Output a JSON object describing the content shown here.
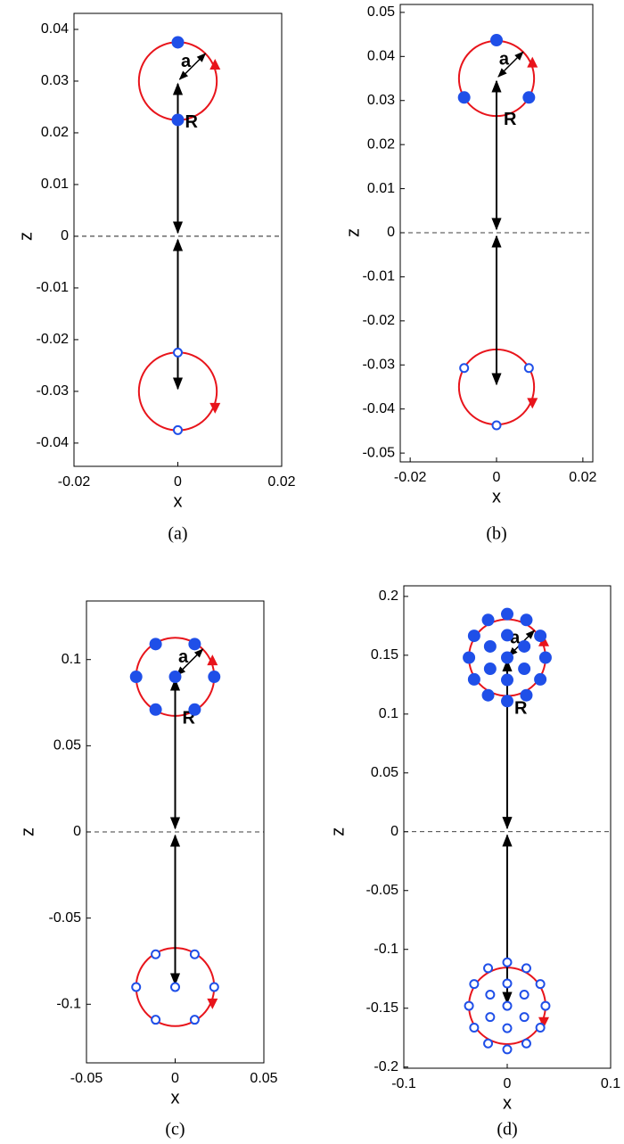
{
  "chart_data": [
    {
      "type": "scatter",
      "caption": "(a)",
      "xlabel": "x",
      "ylabel": "z",
      "xlim": [
        -0.02,
        0.02
      ],
      "xticks": [
        -0.02,
        0,
        0.02
      ],
      "ylim": [
        -0.0445,
        0.0431
      ],
      "yticks": [
        -0.04,
        -0.03,
        -0.02,
        -0.01,
        0,
        0.01,
        0.02,
        0.03,
        0.04
      ],
      "annotations": [
        "R",
        "a"
      ],
      "ring_color": "#e8141b",
      "rings": [
        {
          "x": 0,
          "y": 0.03,
          "r": 0.0075
        },
        {
          "x": 0,
          "y": -0.03,
          "r": 0.0075
        }
      ],
      "series": [
        {
          "marker": "filled",
          "color": "#1f4fe8",
          "x": [
            0,
            0
          ],
          "y": [
            0.0375,
            0.0225
          ]
        },
        {
          "marker": "open",
          "color": "#1f4fe8",
          "x": [
            0,
            0
          ],
          "y": [
            -0.0225,
            -0.0375
          ]
        }
      ]
    },
    {
      "type": "scatter",
      "caption": "(b)",
      "xlabel": "x",
      "ylabel": "z",
      "xlim": [
        -0.0223,
        0.0223
      ],
      "xticks": [
        -0.02,
        0,
        0.02
      ],
      "ylim": [
        -0.052,
        0.0518
      ],
      "yticks": [
        -0.05,
        -0.04,
        -0.03,
        -0.02,
        -0.01,
        0,
        0.01,
        0.02,
        0.03,
        0.04,
        0.05
      ],
      "annotations": [
        "R",
        "a"
      ],
      "ring_color": "#e8141b",
      "rings": [
        {
          "x": 0,
          "y": 0.035,
          "r": 0.0087
        },
        {
          "x": 0,
          "y": -0.035,
          "r": 0.0087
        }
      ],
      "series": [
        {
          "marker": "filled",
          "color": "#1f4fe8",
          "x": [
            0,
            -0.0075,
            0.0075
          ],
          "y": [
            0.0437,
            0.0307,
            0.0307
          ]
        },
        {
          "marker": "open",
          "color": "#1f4fe8",
          "x": [
            0,
            -0.0075,
            0.0075
          ],
          "y": [
            -0.0437,
            -0.0307,
            -0.0307
          ]
        }
      ]
    },
    {
      "type": "scatter",
      "caption": "(c)",
      "xlabel": "x",
      "ylabel": "z",
      "xlim": [
        -0.05,
        0.05
      ],
      "xticks": [
        -0.05,
        0,
        0.05
      ],
      "ylim": [
        -0.134,
        0.134
      ],
      "yticks": [
        -0.1,
        -0.05,
        0,
        0.05,
        0.1
      ],
      "annotations": [
        "R",
        "a"
      ],
      "ring_color": "#e8141b",
      "rings": [
        {
          "x": 0,
          "y": 0.09,
          "r": 0.022
        },
        {
          "x": 0,
          "y": -0.09,
          "r": 0.022
        }
      ],
      "series": [
        {
          "marker": "filled",
          "color": "#1f4fe8",
          "x": [
            0,
            0.022,
            0.011,
            -0.011,
            -0.022,
            -0.011,
            0.011
          ],
          "y": [
            0.09,
            0.09,
            0.109,
            0.109,
            0.09,
            0.071,
            0.071
          ]
        },
        {
          "marker": "open",
          "color": "#1f4fe8",
          "x": [
            0,
            0.022,
            0.011,
            -0.011,
            -0.022,
            -0.011,
            0.011
          ],
          "y": [
            -0.09,
            -0.09,
            -0.109,
            -0.109,
            -0.09,
            -0.071,
            -0.071
          ]
        }
      ]
    },
    {
      "type": "scatter",
      "caption": "(d)",
      "xlabel": "x",
      "ylabel": "z",
      "xlim": [
        -0.1,
        0.1
      ],
      "xticks": [
        -0.1,
        0,
        0.1
      ],
      "ylim": [
        -0.201,
        0.209
      ],
      "yticks": [
        -0.2,
        -0.15,
        -0.1,
        -0.05,
        0,
        0.05,
        0.1,
        0.15,
        0.2
      ],
      "annotations": [
        "R",
        "a"
      ],
      "ring_color": "#e8141b",
      "rings": [
        {
          "x": 0,
          "y": 0.148,
          "r": 0.037
        },
        {
          "x": 0,
          "y": -0.148,
          "r": 0.037
        }
      ],
      "series": [
        {
          "marker": "filled",
          "color": "#1f4fe8",
          "x": [
            0,
            0.037,
            0.032,
            0.0185,
            0,
            -0.0185,
            -0.032,
            -0.037,
            -0.032,
            -0.0185,
            0,
            0.0185,
            0.032,
            0.0165,
            0,
            -0.0165,
            -0.0165,
            0,
            0.0165
          ],
          "y": [
            0.148,
            0.148,
            0.1665,
            0.18,
            0.185,
            0.18,
            0.1665,
            0.148,
            0.1295,
            0.116,
            0.111,
            0.116,
            0.1295,
            0.1575,
            0.167,
            0.1575,
            0.1385,
            0.129,
            0.1385
          ]
        },
        {
          "marker": "open",
          "color": "#1f4fe8",
          "x": [
            0,
            0.037,
            0.032,
            0.0185,
            0,
            -0.0185,
            -0.032,
            -0.037,
            -0.032,
            -0.0185,
            0,
            0.0185,
            0.032,
            0.0165,
            0,
            -0.0165,
            -0.0165,
            0,
            0.0165
          ],
          "y": [
            -0.148,
            -0.148,
            -0.1665,
            -0.18,
            -0.185,
            -0.18,
            -0.1665,
            -0.148,
            -0.1295,
            -0.116,
            -0.111,
            -0.116,
            -0.1295,
            -0.1575,
            -0.167,
            -0.1575,
            -0.1385,
            -0.129,
            -0.1385
          ]
        }
      ]
    }
  ]
}
